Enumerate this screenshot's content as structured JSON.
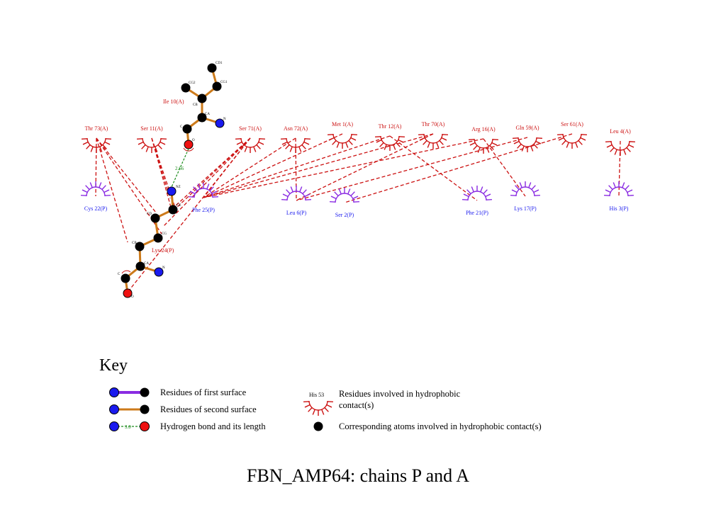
{
  "title": "FBN_AMP64: chains P and A",
  "colors": {
    "chainA": "#cc1111",
    "chainP": "#8a2be2",
    "chainPLabel": "#1a1aee",
    "bond": "#cc7a1a",
    "hbond": "#1a8a1a",
    "contact": "#cc1111",
    "carbon": "#000000",
    "nitrogen": "#1a1aee",
    "oxygen": "#ee1111"
  },
  "ligands": {
    "ile10": {
      "label": "Ile 10(A)",
      "atom_labels": {
        "cd1": "CD1",
        "cg1": "CG1",
        "cg2": "CG2",
        "cb": "CB",
        "ca": "CA",
        "n": "N",
        "c": "C",
        "o": "O"
      }
    },
    "lys24": {
      "label": "Lys 24(P)",
      "atom_labels": {
        "nz": "NZ",
        "ce": "CE",
        "cd": "CD",
        "cg": "CG",
        "cb": "CB",
        "ca": "CA",
        "n": "N",
        "c": "C",
        "o": "O"
      }
    }
  },
  "hbond_length": "2.66",
  "residues_chainA": [
    {
      "id": "thr73",
      "label": "Thr 73(A)"
    },
    {
      "id": "ser11",
      "label": "Ser 11(A)"
    },
    {
      "id": "ser71",
      "label": "Ser 71(A)"
    },
    {
      "id": "asn72",
      "label": "Asn 72(A)"
    },
    {
      "id": "met1",
      "label": "Met 1(A)"
    },
    {
      "id": "thr12",
      "label": "Thr 12(A)"
    },
    {
      "id": "thr70",
      "label": "Thr 70(A)"
    },
    {
      "id": "arg16",
      "label": "Arg 16(A)"
    },
    {
      "id": "gln59",
      "label": "Gln 59(A)"
    },
    {
      "id": "ser61",
      "label": "Ser 61(A)"
    },
    {
      "id": "leu4",
      "label": "Leu 4(A)"
    }
  ],
  "residues_chainP": [
    {
      "id": "cys22",
      "label": "Cys 22(P)"
    },
    {
      "id": "phe25",
      "label": "Phe 25(P)"
    },
    {
      "id": "leu6",
      "label": "Leu 6(P)"
    },
    {
      "id": "ser2",
      "label": "Ser 2(P)"
    },
    {
      "id": "phe21",
      "label": "Phe 21(P)"
    },
    {
      "id": "lys17",
      "label": "Lys 17(P)"
    },
    {
      "id": "his3",
      "label": "His 3(P)"
    }
  ],
  "contacts": [
    [
      "thr73",
      "cys22"
    ],
    [
      "ser71",
      "phe25"
    ],
    [
      "asn72",
      "leu6"
    ],
    [
      "asn72",
      "phe25"
    ],
    [
      "met1",
      "phe25"
    ],
    [
      "thr12",
      "phe25"
    ],
    [
      "thr12",
      "phe21"
    ],
    [
      "thr70",
      "leu6"
    ],
    [
      "thr70",
      "phe25"
    ],
    [
      "arg16",
      "lys17"
    ],
    [
      "arg16",
      "phe25"
    ],
    [
      "gln59",
      "leu6"
    ],
    [
      "ser61",
      "ser2"
    ],
    [
      "leu4",
      "his3"
    ]
  ],
  "key": {
    "title": "Key",
    "first_surface": "Residues of first surface",
    "second_surface": "Residues of second surface",
    "hbond": "Hydrogen bond and its length",
    "hbond_example_length": "3.0",
    "hydrophobic_example": "His 53",
    "hydrophobic_line1": "Residues involved in hydrophobic",
    "hydrophobic_line2": "contact(s)",
    "corresponding_atoms": "Corresponding atoms involved in hydrophobic contact(s)"
  }
}
